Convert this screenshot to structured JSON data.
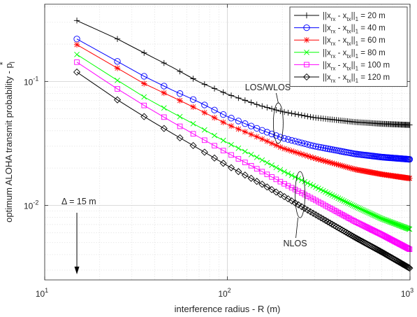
{
  "chart_data": {
    "type": "line",
    "title": "",
    "xlabel": "interference radius - R (m)",
    "ylabel": "optimum ALOHA transmit probability - p",
    "ylabel_sub": "l",
    "ylabel_sup": "*",
    "xscale": "log",
    "yscale": "log",
    "xlim": [
      10,
      1000
    ],
    "ylim": [
      0.0025,
      0.42
    ],
    "x_ticks": [
      {
        "base": "10",
        "exp": "1"
      },
      {
        "base": "10",
        "exp": "2"
      },
      {
        "base": "10",
        "exp": "3"
      }
    ],
    "y_ticks": [
      {
        "base": "10",
        "exp": "-2"
      },
      {
        "base": "10",
        "exp": "-1"
      }
    ],
    "grid": true,
    "legend_position": "top-right",
    "series": [
      {
        "name_parts": [
          "||x",
          "rx",
          " - x",
          "tx",
          "||",
          "1",
          " = 20 m"
        ],
        "color": "#000000",
        "marker": "plus",
        "x": [
          15,
          25,
          35,
          50,
          70,
          100,
          150,
          200,
          300,
          500,
          700,
          1000
        ],
        "values": [
          0.31,
          0.22,
          0.17,
          0.13,
          0.099,
          0.079,
          0.064,
          0.057,
          0.051,
          0.047,
          0.0455,
          0.0445
        ]
      },
      {
        "name_parts": [
          "||x",
          "rx",
          " - x",
          "tx",
          "||",
          "1",
          " = 40 m"
        ],
        "color": "#0000ff",
        "marker": "circle",
        "x": [
          15,
          25,
          35,
          50,
          70,
          100,
          150,
          200,
          300,
          500,
          700,
          1000
        ],
        "values": [
          0.22,
          0.145,
          0.11,
          0.085,
          0.068,
          0.052,
          0.041,
          0.035,
          0.03,
          0.026,
          0.0245,
          0.0235
        ]
      },
      {
        "name_parts": [
          "||x",
          "rx",
          " - x",
          "tx",
          "||",
          "1",
          " = 60 m"
        ],
        "color": "#ff0000",
        "marker": "star",
        "x": [
          15,
          25,
          35,
          50,
          70,
          100,
          150,
          200,
          300,
          500,
          700,
          1000
        ],
        "values": [
          0.198,
          0.128,
          0.096,
          0.075,
          0.059,
          0.045,
          0.035,
          0.029,
          0.024,
          0.0195,
          0.0178,
          0.0165
        ]
      },
      {
        "name_parts": [
          "||x",
          "rx",
          " - x",
          "tx",
          "||",
          "1",
          " = 80 m"
        ],
        "color": "#00ff00",
        "marker": "x",
        "x": [
          15,
          25,
          35,
          50,
          70,
          100,
          150,
          200,
          300,
          500,
          700,
          1000
        ],
        "values": [
          0.165,
          0.102,
          0.075,
          0.056,
          0.043,
          0.032,
          0.0238,
          0.019,
          0.0142,
          0.0098,
          0.0078,
          0.0064
        ]
      },
      {
        "name_parts": [
          "||x",
          "rx",
          " - x",
          "tx",
          "||",
          "1",
          " = 100 m"
        ],
        "color": "#ff00ff",
        "marker": "square",
        "x": [
          15,
          25,
          35,
          50,
          70,
          100,
          150,
          200,
          300,
          500,
          700,
          1000
        ],
        "values": [
          0.143,
          0.087,
          0.064,
          0.047,
          0.0355,
          0.0265,
          0.0192,
          0.0152,
          0.0111,
          0.0074,
          0.0058,
          0.0044
        ]
      },
      {
        "name_parts": [
          "||x",
          "rx",
          " - x",
          "tx",
          "||",
          "1",
          " = 120 m"
        ],
        "color": "#000000",
        "marker": "diamond",
        "x": [
          15,
          25,
          35,
          50,
          70,
          100,
          150,
          200,
          300,
          500,
          700,
          1000
        ],
        "values": [
          0.119,
          0.071,
          0.052,
          0.038,
          0.0285,
          0.0209,
          0.0152,
          0.012,
          0.0085,
          0.0055,
          0.0042,
          0.0031
        ]
      }
    ],
    "annotations": {
      "los": "LOS/WLOS",
      "nlos": "NLOS",
      "delta_symbol": "Δ",
      "delta_text": " = 15 m"
    }
  }
}
